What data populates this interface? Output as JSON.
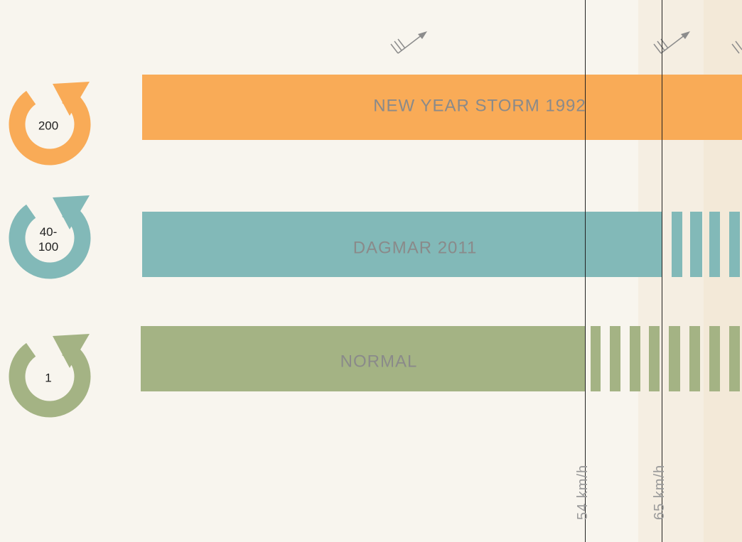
{
  "rows": [
    {
      "label": "NEW YEAR STORM 1992",
      "badge": [
        "200"
      ]
    },
    {
      "label": "DAGMAR 2011",
      "badge": [
        "40-",
        "100"
      ]
    },
    {
      "label": "NORMAL",
      "badge": [
        "1"
      ]
    }
  ],
  "thresholds": [
    "54 km/h",
    "65 km/h"
  ]
}
